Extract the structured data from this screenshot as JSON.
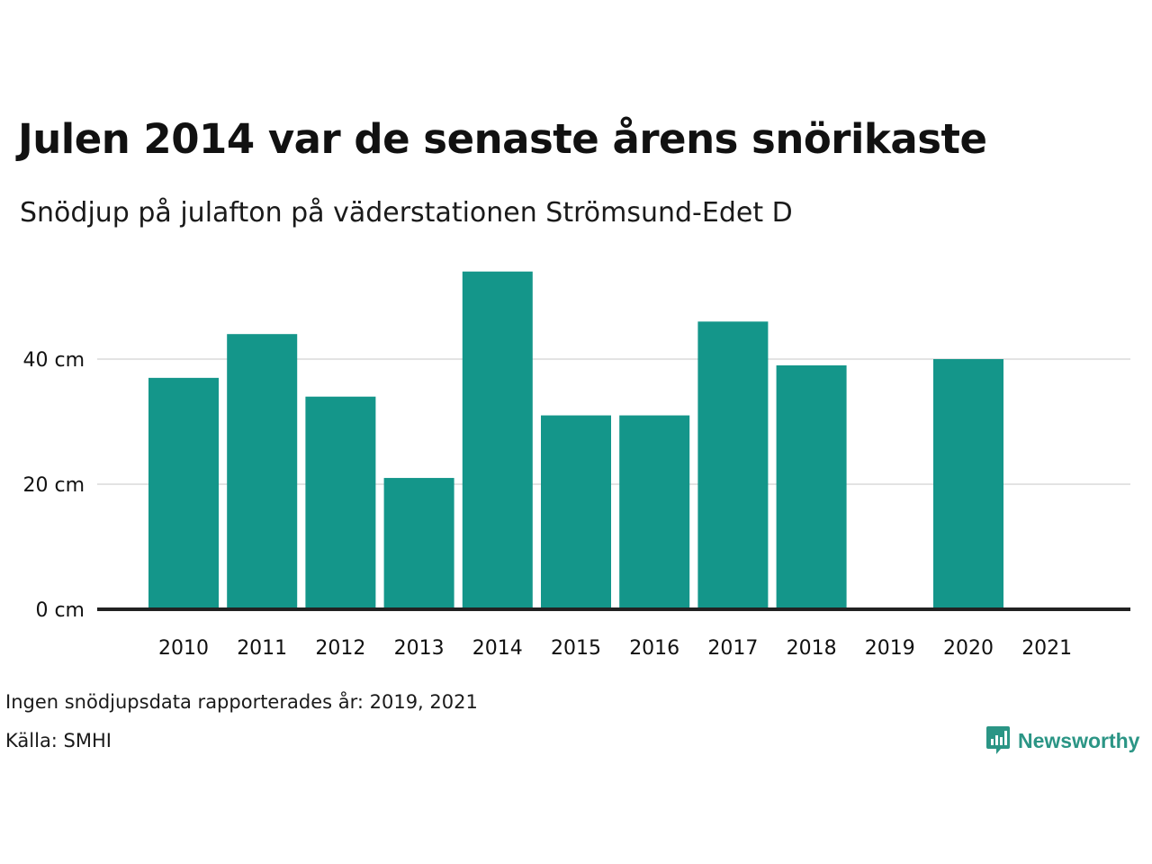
{
  "title": "Julen 2014 var de senaste årens snörikaste",
  "subtitle": "Snödjup på julafton på väderstationen Strömsund-Edet D",
  "note": "Ingen snödjupsdata rapporterades år: 2019, 2021",
  "source": "Källa: SMHI",
  "brand": {
    "name": "Newsworthy",
    "color": "#2b9585",
    "icon": "bar-chart-speech-bubble-icon"
  },
  "colors": {
    "bar": "#14968a",
    "grid": "#e3e3e3",
    "baseline": "#222222",
    "text": "#111111"
  },
  "chart_data": {
    "type": "bar",
    "categories": [
      "2010",
      "2011",
      "2012",
      "2013",
      "2014",
      "2015",
      "2016",
      "2017",
      "2018",
      "2019",
      "2020",
      "2021"
    ],
    "values": [
      37,
      44,
      34,
      21,
      54,
      31,
      31,
      46,
      39,
      null,
      40,
      null
    ],
    "y_ticks": [
      {
        "value": 0,
        "label": "0 cm"
      },
      {
        "value": 20,
        "label": "20 cm"
      },
      {
        "value": 40,
        "label": "40 cm"
      }
    ],
    "ylim": [
      0,
      60
    ],
    "grid": true,
    "legend": false
  }
}
